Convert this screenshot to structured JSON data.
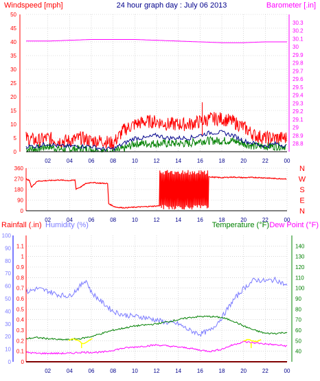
{
  "header": {
    "wind_title": "Windspeed [mph]",
    "date_title": "24 hour graph day : July 06 2013",
    "baro_title": "Barometer [.in]"
  },
  "labels": {
    "rainfall": "Rainfall (.in)",
    "humidity": "Humidity (%)",
    "temperature": "Temperature (°F)",
    "dewpoint": "Dew Point (°F)"
  },
  "colors": {
    "wind": "#ff0000",
    "gust": "#ff0000",
    "avg_wind": "#00008b",
    "wind_low": "#008000",
    "barometer": "#ff00ff",
    "direction": "#ff0000",
    "rain": "#ff0000",
    "humidity": "#7b7bff",
    "temperature": "#008000",
    "dewpoint": "#ff00ff",
    "solar": "#ffff00",
    "grid": "#c0c0c0",
    "axis": "#000000"
  },
  "chart_data": [
    {
      "type": "line",
      "title": "24 hour graph day : July 06 2013",
      "x_ticks": [
        "02",
        "04",
        "06",
        "08",
        "10",
        "12",
        "14",
        "16",
        "18",
        "20",
        "22",
        "00"
      ],
      "x_range": [
        0,
        24
      ],
      "y_left": {
        "label": "Windspeed [mph]",
        "range": [
          0,
          50
        ],
        "ticks": [
          0,
          5,
          10,
          15,
          20,
          25,
          30,
          35,
          40,
          45,
          50
        ]
      },
      "y_right": {
        "label": "Barometer [.in]",
        "range": [
          28.7,
          30.4
        ],
        "ticks": [
          "28.8",
          "28.9",
          "29",
          "29.1",
          "29.2",
          "29.3",
          "29.4",
          "29.5",
          "29.6",
          "29.7",
          "29.8",
          "29.9",
          "30",
          "30.1",
          "30.2",
          "30.3"
        ]
      },
      "series": [
        {
          "key": "gust",
          "axis": "left",
          "x": [
            0,
            1,
            2,
            3,
            4,
            5,
            6,
            7,
            8,
            9,
            10,
            11,
            12,
            13,
            14,
            15,
            16,
            17,
            18,
            19,
            20,
            21,
            22,
            23,
            24
          ],
          "values": [
            5,
            4,
            5,
            4,
            4,
            5,
            4,
            4,
            3,
            8,
            10,
            11,
            11,
            10,
            10,
            10,
            11,
            12,
            12,
            11,
            9,
            6,
            5,
            5,
            5
          ]
        },
        {
          "key": "avg_wind",
          "axis": "left",
          "x": [
            0,
            1,
            2,
            3,
            4,
            5,
            6,
            7,
            8,
            9,
            10,
            11,
            12,
            13,
            14,
            15,
            16,
            17,
            18,
            19,
            20,
            21,
            22,
            23,
            24
          ],
          "values": [
            2,
            2,
            3,
            2,
            2,
            2,
            2,
            1,
            1,
            3,
            5,
            5,
            6,
            5,
            5,
            5,
            6,
            7,
            7,
            6,
            4,
            3,
            2,
            3,
            2
          ]
        },
        {
          "key": "wind_low",
          "axis": "left",
          "x": [
            0,
            1,
            2,
            3,
            4,
            5,
            6,
            7,
            8,
            9,
            10,
            11,
            12,
            13,
            14,
            15,
            16,
            17,
            18,
            19,
            20,
            21,
            22,
            23,
            24
          ],
          "values": [
            1,
            1,
            2,
            1,
            1,
            1,
            1,
            0,
            0,
            1,
            3,
            3,
            3,
            3,
            3,
            3,
            4,
            4,
            4,
            4,
            3,
            2,
            2,
            2,
            2
          ]
        },
        {
          "key": "barometer",
          "axis": "right",
          "x": [
            0,
            2,
            4,
            6,
            8,
            10,
            12,
            14,
            16,
            18,
            20,
            22,
            24
          ],
          "values": [
            30.07,
            30.07,
            30.08,
            30.09,
            30.09,
            30.09,
            30.08,
            30.07,
            30.06,
            30.05,
            30.05,
            30.06,
            30.06
          ]
        }
      ],
      "peak_gust": {
        "x": 16.2,
        "y": 18
      }
    },
    {
      "type": "line",
      "title": "",
      "x_ticks": [
        "02",
        "04",
        "06",
        "08",
        "10",
        "12",
        "14",
        "16",
        "18",
        "20",
        "22",
        "00"
      ],
      "x_range": [
        0,
        24
      ],
      "y_left": {
        "label": "",
        "range": [
          0,
          360
        ],
        "ticks": [
          0,
          90,
          180,
          270,
          360
        ]
      },
      "compass": [
        "N",
        "W",
        "S",
        "E",
        "N"
      ],
      "series": [
        {
          "key": "direction",
          "x": [
            0,
            0.3,
            0.5,
            1,
            2,
            3,
            4,
            4.5,
            4.6,
            5,
            5.5,
            6,
            6.5,
            7.5,
            7.6,
            8,
            8.3,
            9,
            10,
            11,
            12,
            12.5,
            13,
            13.5,
            14,
            15,
            16,
            16.5,
            17,
            18,
            19,
            20,
            21,
            22,
            23,
            24
          ],
          "values": [
            270,
            255,
            200,
            250,
            255,
            260,
            255,
            260,
            185,
            200,
            230,
            240,
            235,
            230,
            60,
            40,
            30,
            25,
            30,
            35,
            40,
            45,
            50,
            60,
            280,
            300,
            295,
            300,
            285,
            280,
            285,
            280,
            282,
            278,
            272,
            270
          ]
        }
      ],
      "variable_band": {
        "from": 12.3,
        "to": 16.8,
        "low": 10,
        "high": 345
      }
    },
    {
      "type": "line",
      "title": "",
      "x_ticks": [
        "02",
        "04",
        "06",
        "08",
        "10",
        "12",
        "14",
        "16",
        "18",
        "20",
        "22",
        "00"
      ],
      "x_range": [
        0,
        24
      ],
      "y_left_rain": {
        "label": "Rainfall (.in)",
        "range": [
          0,
          1.2
        ],
        "ticks": [
          "0",
          "0.1",
          "0.2",
          "0.3",
          "0.4",
          "0.5",
          "0.6",
          "0.7",
          "0.8",
          "0.9",
          "1",
          "1.1"
        ]
      },
      "y_left_humidity": {
        "label": "Humidity (%)",
        "range": [
          0,
          100
        ],
        "ticks": [
          0,
          10,
          20,
          30,
          40,
          50,
          60,
          70,
          80,
          90,
          100
        ]
      },
      "y_right": {
        "label": "Temperature (°F)",
        "range": [
          30,
          150
        ],
        "ticks": [
          40,
          50,
          60,
          70,
          80,
          90,
          100,
          110,
          120,
          130,
          140
        ]
      },
      "series": [
        {
          "key": "rain",
          "axis": "rain",
          "x": [
            0,
            24
          ],
          "values": [
            0,
            0
          ]
        },
        {
          "key": "humidity",
          "axis": "humidity",
          "x": [
            0,
            1,
            2,
            3,
            4,
            5,
            5.5,
            6,
            7,
            8,
            9,
            10,
            11,
            12,
            13,
            14,
            15,
            16,
            17,
            18,
            19,
            20,
            21,
            22,
            23,
            24
          ],
          "values": [
            55,
            58,
            56,
            53,
            52,
            60,
            65,
            55,
            47,
            40,
            37,
            36,
            35,
            33,
            31,
            30,
            25,
            22,
            25,
            35,
            48,
            58,
            65,
            64,
            65,
            60
          ]
        },
        {
          "key": "temperature",
          "axis": "right",
          "x": [
            0,
            1,
            2,
            3,
            4,
            5,
            6,
            7,
            8,
            9,
            10,
            11,
            12,
            13,
            14,
            15,
            16,
            17,
            18,
            19,
            20,
            21,
            22,
            23,
            24
          ],
          "values": [
            52,
            53,
            52,
            51,
            51,
            52,
            54,
            57,
            60,
            62,
            64,
            65,
            66,
            68,
            70,
            72,
            73,
            73,
            72,
            69,
            64,
            60,
            57,
            57,
            58
          ]
        },
        {
          "key": "dewpoint",
          "axis": "right",
          "x": [
            0,
            1,
            2,
            3,
            4,
            5,
            6,
            7,
            8,
            9,
            10,
            11,
            12,
            13,
            14,
            15,
            16,
            17,
            18,
            19,
            20,
            21,
            22,
            23,
            24
          ],
          "values": [
            39,
            38,
            38,
            38,
            38,
            39,
            39,
            39,
            41,
            43,
            44,
            45,
            46,
            45,
            44,
            43,
            41,
            40,
            42,
            46,
            49,
            48,
            47,
            46,
            45
          ]
        },
        {
          "key": "solar",
          "axis": "right",
          "x": [
            3.9,
            4.3,
            4.8,
            5.2,
            5.6,
            6.1
          ],
          "values": [
            50,
            52,
            50,
            47,
            49,
            52
          ]
        },
        {
          "key": "solar",
          "axis": "right",
          "x": [
            20.0,
            20.4,
            20.8,
            21.2,
            21.6
          ],
          "values": [
            50,
            51,
            50,
            49,
            51
          ]
        }
      ],
      "markers": [
        {
          "key": "solar_tick",
          "x": 5.1,
          "from": 43,
          "to": 48
        },
        {
          "key": "solar_tick",
          "x": 20.7,
          "from": 43,
          "to": 48
        }
      ]
    }
  ]
}
